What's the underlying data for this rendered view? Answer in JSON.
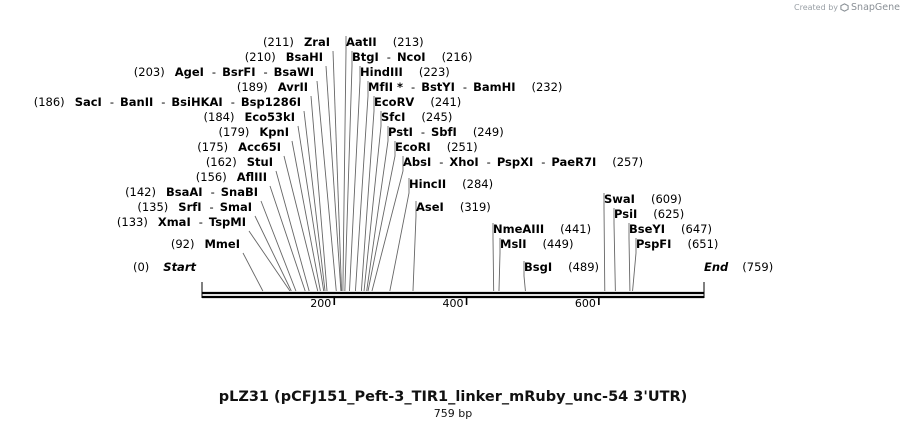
{
  "brand": {
    "created_by": "Created by",
    "name": "SnapGene"
  },
  "title": "pLZ31 (pCFJ151_Peft-3_TIR1_linker_mRuby_unc-54 3'UTR)",
  "subtitle": "759 bp",
  "sequence_length": 759,
  "axis_ticks": [
    {
      "value": 200,
      "label": "200"
    },
    {
      "value": 400,
      "label": "400"
    },
    {
      "value": 600,
      "label": "600"
    }
  ],
  "start": {
    "pos_label": "(0)",
    "name": "Start"
  },
  "end": {
    "name": "End",
    "pos_label": "(759)"
  },
  "sites": [
    {
      "pos": 92,
      "pos_label": "(92)",
      "names": [
        "MmeI"
      ]
    },
    {
      "pos": 133,
      "pos_label": "(133)",
      "names": [
        "XmaI",
        "TspMI"
      ]
    },
    {
      "pos": 135,
      "pos_label": "(135)",
      "names": [
        "SrfI",
        "SmaI"
      ]
    },
    {
      "pos": 142,
      "pos_label": "(142)",
      "names": [
        "BsaAI",
        "SnaBI"
      ]
    },
    {
      "pos": 156,
      "pos_label": "(156)",
      "names": [
        "AflIII"
      ]
    },
    {
      "pos": 162,
      "pos_label": "(162)",
      "names": [
        "StuI"
      ]
    },
    {
      "pos": 175,
      "pos_label": "(175)",
      "names": [
        "Acc65I"
      ]
    },
    {
      "pos": 179,
      "pos_label": "(179)",
      "names": [
        "KpnI"
      ]
    },
    {
      "pos": 184,
      "pos_label": "(184)",
      "names": [
        "Eco53kI"
      ]
    },
    {
      "pos": 186,
      "pos_label": "(186)",
      "names": [
        "SacI",
        "BanII",
        "BsiHKAI",
        "Bsp1286I"
      ]
    },
    {
      "pos": 189,
      "pos_label": "(189)",
      "names": [
        "AvrII"
      ]
    },
    {
      "pos": 203,
      "pos_label": "(203)",
      "names": [
        "AgeI",
        "BsrFI",
        "BsaWI"
      ]
    },
    {
      "pos": 210,
      "pos_label": "(210)",
      "names": [
        "BsaHI"
      ]
    },
    {
      "pos": 211,
      "pos_label": "(211)",
      "names": [
        "ZraI"
      ]
    },
    {
      "pos": 213,
      "pos_label": "(213)",
      "names": [
        "AatII"
      ]
    },
    {
      "pos": 216,
      "pos_label": "(216)",
      "names": [
        "BtgI",
        "NcoI"
      ]
    },
    {
      "pos": 223,
      "pos_label": "(223)",
      "names": [
        "HindIII"
      ]
    },
    {
      "pos": 232,
      "pos_label": "(232)",
      "names": [
        "MfII *",
        "BstYI",
        "BamHI"
      ]
    },
    {
      "pos": 241,
      "pos_label": "(241)",
      "names": [
        "EcoRV"
      ]
    },
    {
      "pos": 245,
      "pos_label": "(245)",
      "names": [
        "SfcI"
      ]
    },
    {
      "pos": 249,
      "pos_label": "(249)",
      "names": [
        "PstI",
        "SbfI"
      ]
    },
    {
      "pos": 251,
      "pos_label": "(251)",
      "names": [
        "EcoRI"
      ]
    },
    {
      "pos": 257,
      "pos_label": "(257)",
      "names": [
        "AbsI",
        "XhoI",
        "PspXI",
        "PaeR7I"
      ]
    },
    {
      "pos": 284,
      "pos_label": "(284)",
      "names": [
        "HincII"
      ]
    },
    {
      "pos": 319,
      "pos_label": "(319)",
      "names": [
        "AseI"
      ]
    },
    {
      "pos": 441,
      "pos_label": "(441)",
      "names": [
        "NmeAIII"
      ]
    },
    {
      "pos": 449,
      "pos_label": "(449)",
      "names": [
        "MslI"
      ]
    },
    {
      "pos": 489,
      "pos_label": "(489)",
      "names": [
        "BsgI"
      ]
    },
    {
      "pos": 609,
      "pos_label": "(609)",
      "names": [
        "SwaI"
      ]
    },
    {
      "pos": 625,
      "pos_label": "(625)",
      "names": [
        "PsiI"
      ]
    },
    {
      "pos": 647,
      "pos_label": "(647)",
      "names": [
        "BseYI"
      ]
    },
    {
      "pos": 651,
      "pos_label": "(651)",
      "names": [
        "PspFI"
      ]
    }
  ]
}
